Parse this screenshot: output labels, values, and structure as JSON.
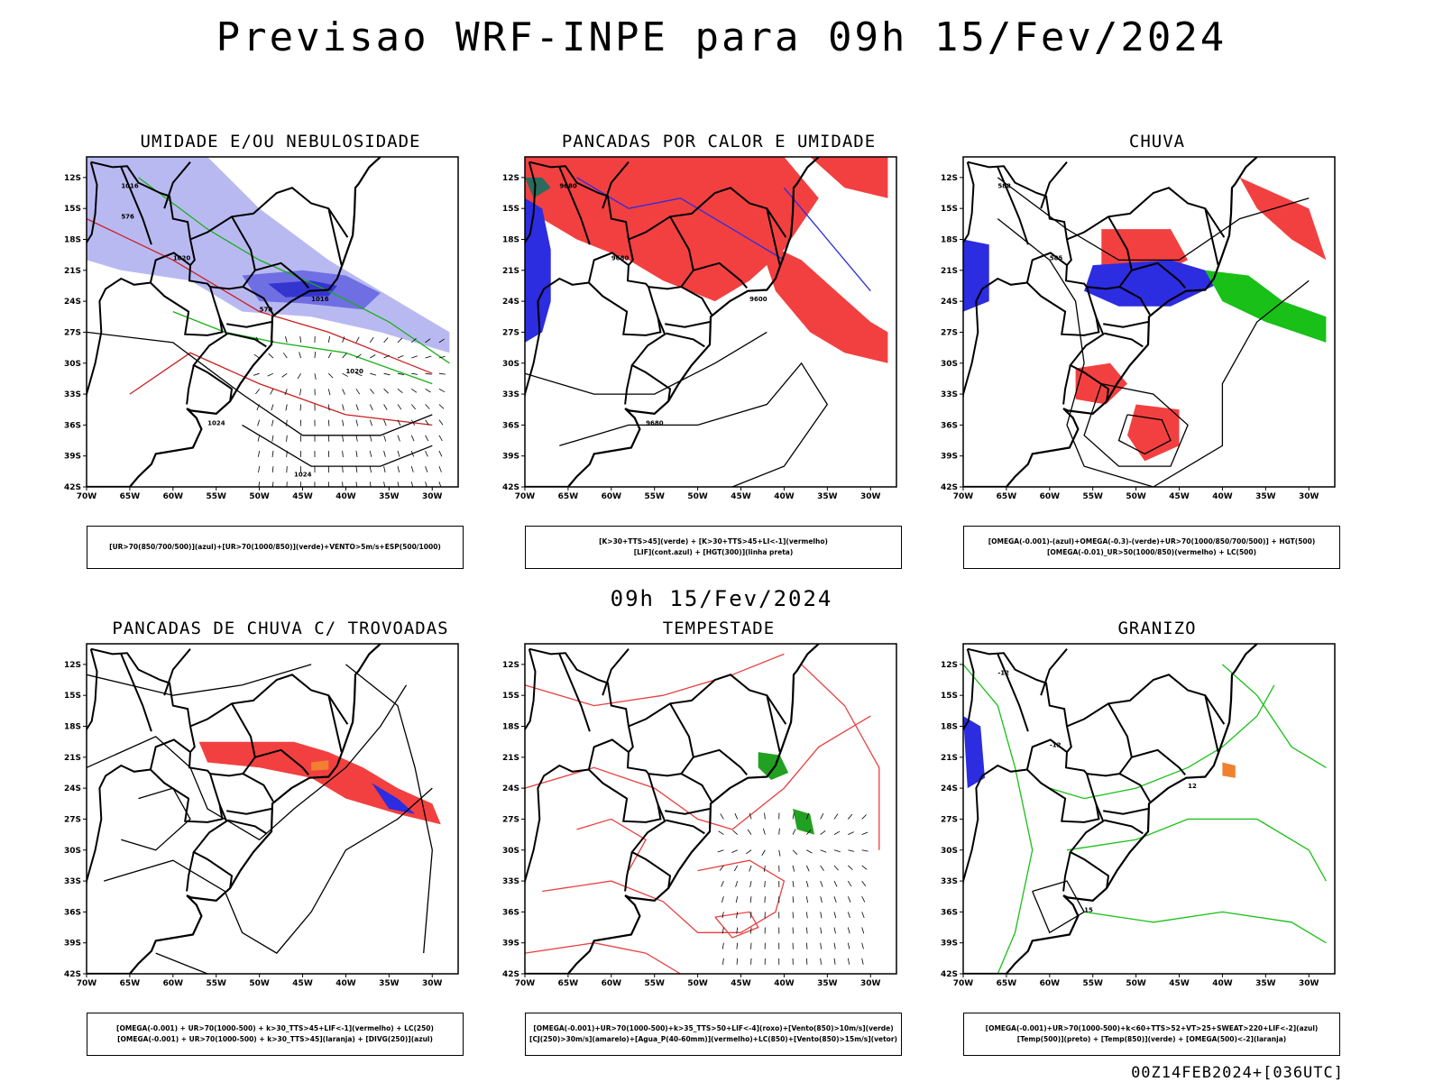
{
  "header": {
    "title": "Previsao WRF-INPE  para 09h 15/Fev/2024"
  },
  "middle": {
    "title": "09h 15/Fev/2024"
  },
  "footer": {
    "run": "00Z14FEB2024+[036UTC]"
  },
  "axes": {
    "lat_labels": [
      "12S",
      "15S",
      "18S",
      "21S",
      "24S",
      "27S",
      "30S",
      "33S",
      "36S",
      "39S",
      "42S"
    ],
    "lon_labels": [
      "70W",
      "65W",
      "60W",
      "55W",
      "50W",
      "45W",
      "40W",
      "35W",
      "30W"
    ]
  },
  "panels": [
    {
      "id": "umidade",
      "title": "UMIDADE E/OU NEBULOSIDADE",
      "legend": [
        "[UR>70(850/700/500)](azul)+[UR>70(1000/850)](verde)+VENTO>5m/s+ESP(500/1000)"
      ],
      "contour_labels": [
        "1016",
        "1020",
        "1024",
        "1016",
        "1020",
        "1024",
        "576",
        "570"
      ]
    },
    {
      "id": "pancadas-calor",
      "title": "PANCADAS POR CALOR E UMIDADE",
      "legend": [
        "[K>30+TTS>45](verde) + [K>30+TTS>45+LI<-1](vermelho)",
        "[LIF](cont.azul) + [HGT(300)](linha preta)"
      ],
      "contour_labels": [
        "9680",
        "9680",
        "9680",
        "9600"
      ]
    },
    {
      "id": "chuva",
      "title": "CHUVA",
      "legend": [
        "[OMEGA(-0.001)-(azul)+OMEGA(-0.3)-(verde)+UR>70(1000/850/700/500)] + HGT(500)",
        "[OMEGA(-0.01)_UR>50(1000/850)(vermelho) + LC(500)"
      ],
      "contour_labels": [
        "588",
        "585"
      ]
    },
    {
      "id": "trovoadas",
      "title": "PANCADAS DE CHUVA C/ TROVOADAS",
      "legend": [
        "[OMEGA(-0.001) + UR>70(1000-500) + k>30_TTS>45+LIF<-1](vermelho) + LC(250)",
        "[OMEGA(-0.001) + UR>70(1000-500) + k>30_TTS>45](laranja) + [DIVG(250)](azul)"
      ],
      "contour_labels": []
    },
    {
      "id": "tempestade",
      "title": "TEMPESTADE",
      "legend": [
        "[OMEGA(-0.001)+UR>70(1000-500)+k>35_TTS>50+LIF<-4](roxo)+[Vento(850)>10m/s](verde)",
        "[CJ(250)>30m/s](amarelo)+[Agua_P(40-60mm)](vermelho)+LC(850)+[Vento(850)>15m/s](vetor)"
      ],
      "contour_labels": []
    },
    {
      "id": "granizo",
      "title": "GRANIZO",
      "legend": [
        "[OMEGA(-0.001)+UR>70(1000-500)+k<60+TTS>52+VT>25+SWEAT>220+LIF<-2](azul)",
        "[Temp(500)](preto) + [Temp(850)](verde) + [OMEGA(500)<-2](laranja)"
      ],
      "contour_labels": [
        "-12",
        "-12",
        "15",
        "12"
      ]
    }
  ]
}
